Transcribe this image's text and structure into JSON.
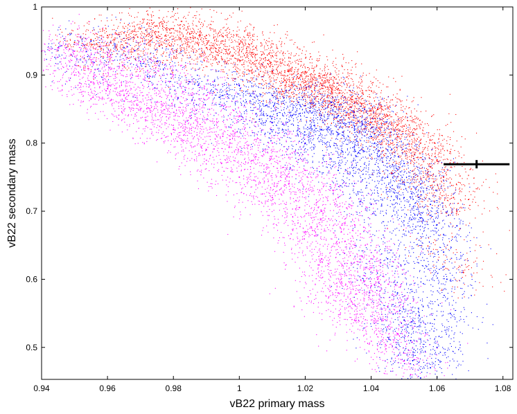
{
  "chart_data": {
    "type": "scatter",
    "xlabel": "vB22 primary mass",
    "ylabel": "vB22 secondary mass",
    "xlim": [
      0.94,
      1.083
    ],
    "ylim": [
      0.453,
      1.0
    ],
    "xticks": [
      0.94,
      0.96,
      0.98,
      1,
      1.02,
      1.04,
      1.06,
      1.08
    ],
    "xtick_labels": [
      "0.94",
      "0.96",
      "0.98",
      "1",
      "1.02",
      "1.04",
      "1.06",
      "1.08"
    ],
    "yticks": [
      0.5,
      0.6,
      0.7,
      0.8,
      0.9,
      1
    ],
    "ytick_labels": [
      "0.5",
      "0.6",
      "0.7",
      "0.8",
      "0.9",
      "1"
    ],
    "grid": false,
    "box": true,
    "series": [
      {
        "color": "#ff0000",
        "points": [
          [
            0.97,
            0.968
          ],
          [
            0.975,
            0.972
          ],
          [
            0.98,
            0.968
          ],
          [
            0.99,
            0.958
          ],
          [
            1.0,
            0.945
          ],
          [
            1.01,
            0.928
          ],
          [
            1.02,
            0.905
          ],
          [
            1.03,
            0.88
          ],
          [
            1.04,
            0.855
          ],
          [
            1.05,
            0.825
          ],
          [
            1.055,
            0.8
          ],
          [
            1.06,
            0.775
          ],
          [
            1.045,
            0.84
          ],
          [
            1.035,
            0.86
          ],
          [
            1.025,
            0.885
          ],
          [
            1.015,
            0.905
          ],
          [
            1.005,
            0.93
          ],
          [
            0.995,
            0.95
          ],
          [
            0.985,
            0.96
          ],
          [
            0.96,
            0.958
          ],
          [
            0.95,
            0.948
          ],
          [
            0.955,
            0.952
          ],
          [
            0.965,
            0.962
          ],
          [
            0.975,
            0.955
          ],
          [
            0.99,
            0.94
          ],
          [
            1.0,
            0.922
          ],
          [
            1.01,
            0.905
          ],
          [
            1.02,
            0.885
          ],
          [
            1.03,
            0.86
          ],
          [
            1.04,
            0.83
          ],
          [
            1.048,
            0.81
          ],
          [
            1.052,
            0.79
          ],
          [
            1.058,
            0.765
          ],
          [
            1.062,
            0.75
          ],
          [
            1.065,
            0.72
          ],
          [
            1.068,
            0.61
          ],
          [
            1.066,
            0.7
          ],
          [
            1.042,
            0.85
          ],
          [
            1.028,
            0.875
          ],
          [
            1.018,
            0.895
          ]
        ]
      },
      {
        "color": "#0000ff",
        "points": [
          [
            1.0,
            0.885
          ],
          [
            1.01,
            0.87
          ],
          [
            1.02,
            0.855
          ],
          [
            1.03,
            0.84
          ],
          [
            1.035,
            0.825
          ],
          [
            1.04,
            0.81
          ],
          [
            1.045,
            0.79
          ],
          [
            1.05,
            0.77
          ],
          [
            1.055,
            0.74
          ],
          [
            1.058,
            0.71
          ],
          [
            1.06,
            0.68
          ],
          [
            1.062,
            0.64
          ],
          [
            1.063,
            0.6
          ],
          [
            1.064,
            0.55
          ],
          [
            1.06,
            0.5
          ],
          [
            1.058,
            0.47
          ],
          [
            1.055,
            0.455
          ],
          [
            1.045,
            0.63
          ],
          [
            1.048,
            0.58
          ],
          [
            1.05,
            0.54
          ],
          [
            1.052,
            0.51
          ],
          [
            1.04,
            0.71
          ],
          [
            1.03,
            0.76
          ],
          [
            1.02,
            0.8
          ],
          [
            1.01,
            0.83
          ],
          [
            1.025,
            0.82
          ],
          [
            1.035,
            0.79
          ],
          [
            1.045,
            0.75
          ],
          [
            1.05,
            0.72
          ],
          [
            1.055,
            0.69
          ],
          [
            1.038,
            0.85
          ],
          [
            1.028,
            0.86
          ],
          [
            1.018,
            0.86
          ],
          [
            1.008,
            0.855
          ],
          [
            0.995,
            0.87
          ],
          [
            0.985,
            0.89
          ],
          [
            0.975,
            0.92
          ],
          [
            0.965,
            0.94
          ],
          [
            0.955,
            0.95
          ],
          [
            0.945,
            0.94
          ]
        ]
      },
      {
        "color": "#ff00ff",
        "points": [
          [
            0.94,
            0.935
          ],
          [
            0.945,
            0.94
          ],
          [
            0.95,
            0.935
          ],
          [
            0.96,
            0.93
          ],
          [
            0.97,
            0.92
          ],
          [
            0.98,
            0.9
          ],
          [
            0.99,
            0.87
          ],
          [
            1.0,
            0.84
          ],
          [
            1.01,
            0.8
          ],
          [
            1.02,
            0.76
          ],
          [
            1.03,
            0.72
          ],
          [
            1.035,
            0.68
          ],
          [
            1.04,
            0.63
          ],
          [
            1.042,
            0.6
          ],
          [
            1.045,
            0.56
          ],
          [
            1.048,
            0.52
          ],
          [
            1.05,
            0.48
          ],
          [
            1.052,
            0.46
          ],
          [
            1.035,
            0.54
          ],
          [
            1.03,
            0.58
          ],
          [
            1.025,
            0.63
          ],
          [
            1.02,
            0.67
          ],
          [
            1.01,
            0.72
          ],
          [
            1.0,
            0.75
          ],
          [
            0.99,
            0.79
          ],
          [
            0.98,
            0.82
          ],
          [
            0.97,
            0.85
          ],
          [
            0.96,
            0.88
          ],
          [
            0.95,
            0.9
          ],
          [
            0.955,
            0.89
          ],
          [
            0.965,
            0.87
          ],
          [
            0.975,
            0.86
          ],
          [
            0.985,
            0.84
          ],
          [
            0.995,
            0.81
          ],
          [
            1.005,
            0.78
          ],
          [
            1.015,
            0.74
          ],
          [
            1.025,
            0.7
          ],
          [
            1.035,
            0.65
          ],
          [
            1.04,
            0.59
          ],
          [
            1.045,
            0.53
          ]
        ]
      }
    ],
    "error_bar": {
      "x": 1.072,
      "y": 0.769,
      "xerr": 0.01,
      "color": "#000000"
    }
  }
}
